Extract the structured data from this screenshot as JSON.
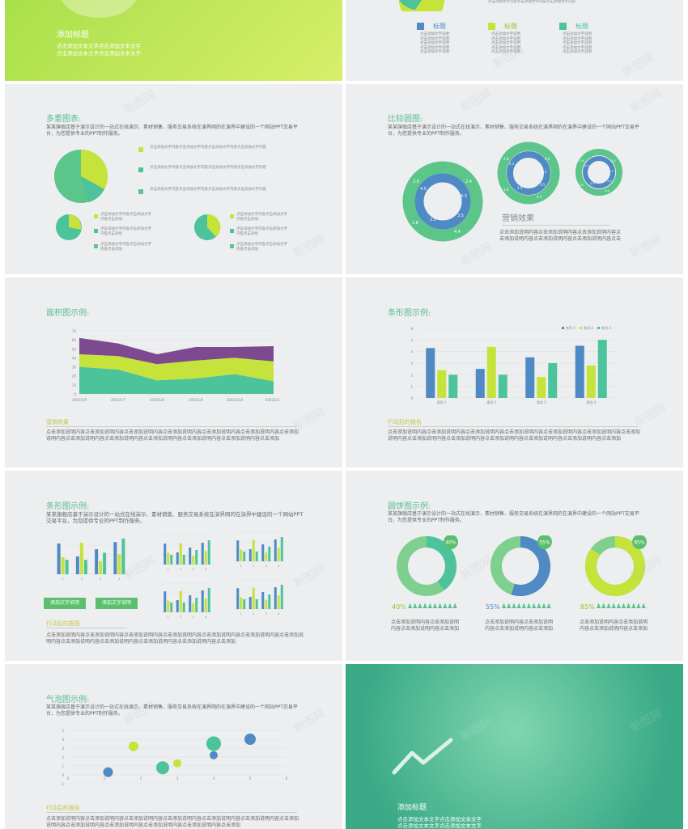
{
  "colors": {
    "blue": "#4f8ac4",
    "lime": "#c6e33b",
    "teal": "#4cc39a",
    "purple": "#7d4a90",
    "green": "#5bbf6f"
  },
  "slide1": {
    "title": "添加标题",
    "line1": "点击添加文本文字点击添加文本文字",
    "line2": "点击添加文本文字点击添加文本文字"
  },
  "slide2": {
    "top_text": "点击添加文字内容点击添加文字内容点击添加文字内容",
    "cols": [
      {
        "label": "标题",
        "text": "点击添加文字说明"
      },
      {
        "label": "标题",
        "text": "点击添加文字说明"
      },
      {
        "label": "标题",
        "text": "点击添加文字说明"
      }
    ]
  },
  "slide3": {
    "title": "多重图表:",
    "desc": "某某旗舰店基于演示设计的一站式在线演示、素材销售、服务交易系统在演界网的在演界中建设的一个网站PPT交易平台，为您提供专业的PPT制作服务。",
    "legend_big": "点击添加文字内容点击添加文字内容点击添加文字内容点击添加文字内容",
    "legend_small": "点击添加文字内容点击添加文字内容点击添加"
  },
  "slide4": {
    "title": "比较圆图:",
    "desc": "某某旗舰店基于演示设计的一站式在线演示、素材销售、服务交易系统在演界网的在演界中建设的一个网站PPT交易平台，为您提供专业的PPT制作服务。",
    "sub": "营销效果",
    "body": "点击添加说明内容点击添加说明内容点击添加说明内容点击添加说明内容点击添加说明内容点击添加说明内容点击",
    "ring1": [
      "2.8",
      "2.4",
      "4.5",
      "4.3",
      "1.8",
      "2.5",
      "3.5",
      "4.4"
    ],
    "ring2": [
      "2.8",
      "3.6",
      "4.2",
      "4.3",
      "1.8",
      "2.5",
      "3.5",
      "4.4"
    ],
    "ring3": [
      "2.8",
      "2.4",
      "4.2",
      "4.3",
      "1.8",
      "2.5",
      "3.5",
      "4.4"
    ]
  },
  "slide5": {
    "title": "面积图示例:",
    "sub": "营销效果",
    "body": "点击添加说明内容点击添加说明内容点击添加说明内容点击添加说明内容点击添加说明内容点击添加说明内容点击添加说明内容点击添加说明内容点击添加说明内容点击添加说明内容点击添加说明内容点击添加说明内容点击添加",
    "y_ticks": [
      "70",
      "60",
      "50",
      "40",
      "30",
      "20",
      "10",
      "0"
    ],
    "x_ticks": [
      "2002/1/6",
      "2002/1/7",
      "2002/1/8",
      "2002/1/9",
      "2002/1/10",
      "2002/1/11"
    ]
  },
  "slide6": {
    "title": "条形图示例:",
    "sub": "行动后的报告",
    "body": "点击添加说明内容点击添加说明内容点击添加说明内容点击添加说明内容点击添加说明内容点击添加说明内容点击添加说明内容点击添加说明内容点击添加说明内容点击添加说明内容点击添加说明内容点击添加说明内容点击添加",
    "y_ticks": [
      "6",
      "5",
      "4",
      "3",
      "2",
      "1",
      "0"
    ],
    "legend": [
      "系列 1",
      "系列 2",
      "系列 3"
    ]
  },
  "slide7": {
    "title": "条形图示例:",
    "desc": "某某旗舰店基于演示设计的一站式在线演示、素材销售、服务交易系统在演界网的在演界中建设的一个网站PPT交易平台，为您提供专业的PPT制作服务。",
    "btn1": "添加文字说明",
    "btn2": "添加文字说明",
    "sub": "行动后的报告",
    "body": "点击添加说明内容点击添加说明内容点击添加说明内容点击添加说明内容点击添加说明内容点击添加说明内容点击添加说明内容点击添加说明内容点击添加说明内容点击添加说明内容点击添加说明内容点击添加"
  },
  "slide8": {
    "title": "圆饼图示例:",
    "desc": "某某旗舰店基于演示设计的一站式在线演示、素材销售、服务交易系统在演界网的在演界中建设的一个网站PPT交易平台，为您提供专业的PPT制作服务。",
    "donuts": [
      {
        "pct": "40%",
        "pct_num": "40",
        "text": "点击添加说明内容点击添加说明内容点击添加说明内容点击添加"
      },
      {
        "pct": "55%",
        "pct_num": "55",
        "text": "点击添加说明内容点击添加说明内容点击添加说明内容点击添加"
      },
      {
        "pct": "85%",
        "pct_num": "85",
        "text": "点击添加说明内容点击添加说明内容点击添加说明内容点击添加"
      }
    ]
  },
  "slide9": {
    "title": "气泡图示例:",
    "desc": "某某旗舰店基于演示设计的一站式在线演示、素材销售、服务交易系统在演界网的在演界中建设的一个网站PPT交易平台，为您提供专业的PPT制作服务。",
    "sub": "行动后的报告",
    "body": "点击添加说明内容点击添加说明内容点击添加说明内容点击添加说明内容点击添加说明内容点击添加说明内容点击添加说明内容点击添加说明内容点击添加说明内容点击添加说明内容点击添加说明内容点击添加",
    "y_ticks": [
      "5",
      "4",
      "3",
      "2",
      "1",
      "0",
      "-1"
    ],
    "x_ticks": [
      "0",
      "1",
      "2",
      "3",
      "4",
      "5",
      "6"
    ]
  },
  "slide10": {
    "title": "添加标题",
    "line1": "点击添加文本文字点击添加文本文字",
    "line2": "点击添加文本文字点击添加文本文字"
  },
  "watermark": "新图网",
  "chart_data": [
    {
      "type": "area",
      "title": "面积图示例:",
      "x": [
        "2002/1/6",
        "2002/1/7",
        "2002/1/8",
        "2002/1/9",
        "2002/1/10",
        "2002/1/11"
      ],
      "ylim": [
        0,
        70
      ],
      "series": [
        {
          "values": [
            30,
            27,
            15,
            17,
            22,
            14
          ]
        },
        {
          "values": [
            14,
            15,
            18,
            20,
            18,
            22
          ]
        },
        {
          "values": [
            18,
            14,
            11,
            15,
            12,
            17
          ]
        }
      ]
    },
    {
      "type": "bar",
      "title": "条形图示例:",
      "categories": [
        "类别 1",
        "类别 2",
        "类别 3",
        "类别 4"
      ],
      "ylim": [
        0,
        6
      ],
      "series": [
        {
          "name": "系列 1",
          "values": [
            4.3,
            2.5,
            3.5,
            4.5
          ]
        },
        {
          "name": "系列 2",
          "values": [
            2.4,
            4.4,
            1.8,
            2.8
          ]
        },
        {
          "name": "系列 3",
          "values": [
            2,
            2,
            3,
            5
          ]
        }
      ]
    },
    {
      "type": "scatter",
      "title": "气泡图示例:",
      "xlim": [
        0,
        6
      ],
      "ylim": [
        -1,
        5
      ],
      "points": [
        {
          "x": 1.1,
          "y": 0.3,
          "s": 6,
          "c": "blue"
        },
        {
          "x": 1.8,
          "y": 3.2,
          "s": 6,
          "c": "lime"
        },
        {
          "x": 2.6,
          "y": 0.8,
          "s": 8,
          "c": "teal"
        },
        {
          "x": 3,
          "y": 1.3,
          "s": 5,
          "c": "lime"
        },
        {
          "x": 4,
          "y": 3.5,
          "s": 9,
          "c": "teal"
        },
        {
          "x": 4,
          "y": 2.2,
          "s": 5,
          "c": "blue"
        },
        {
          "x": 5,
          "y": 4,
          "s": 7,
          "c": "blue"
        }
      ]
    }
  ]
}
